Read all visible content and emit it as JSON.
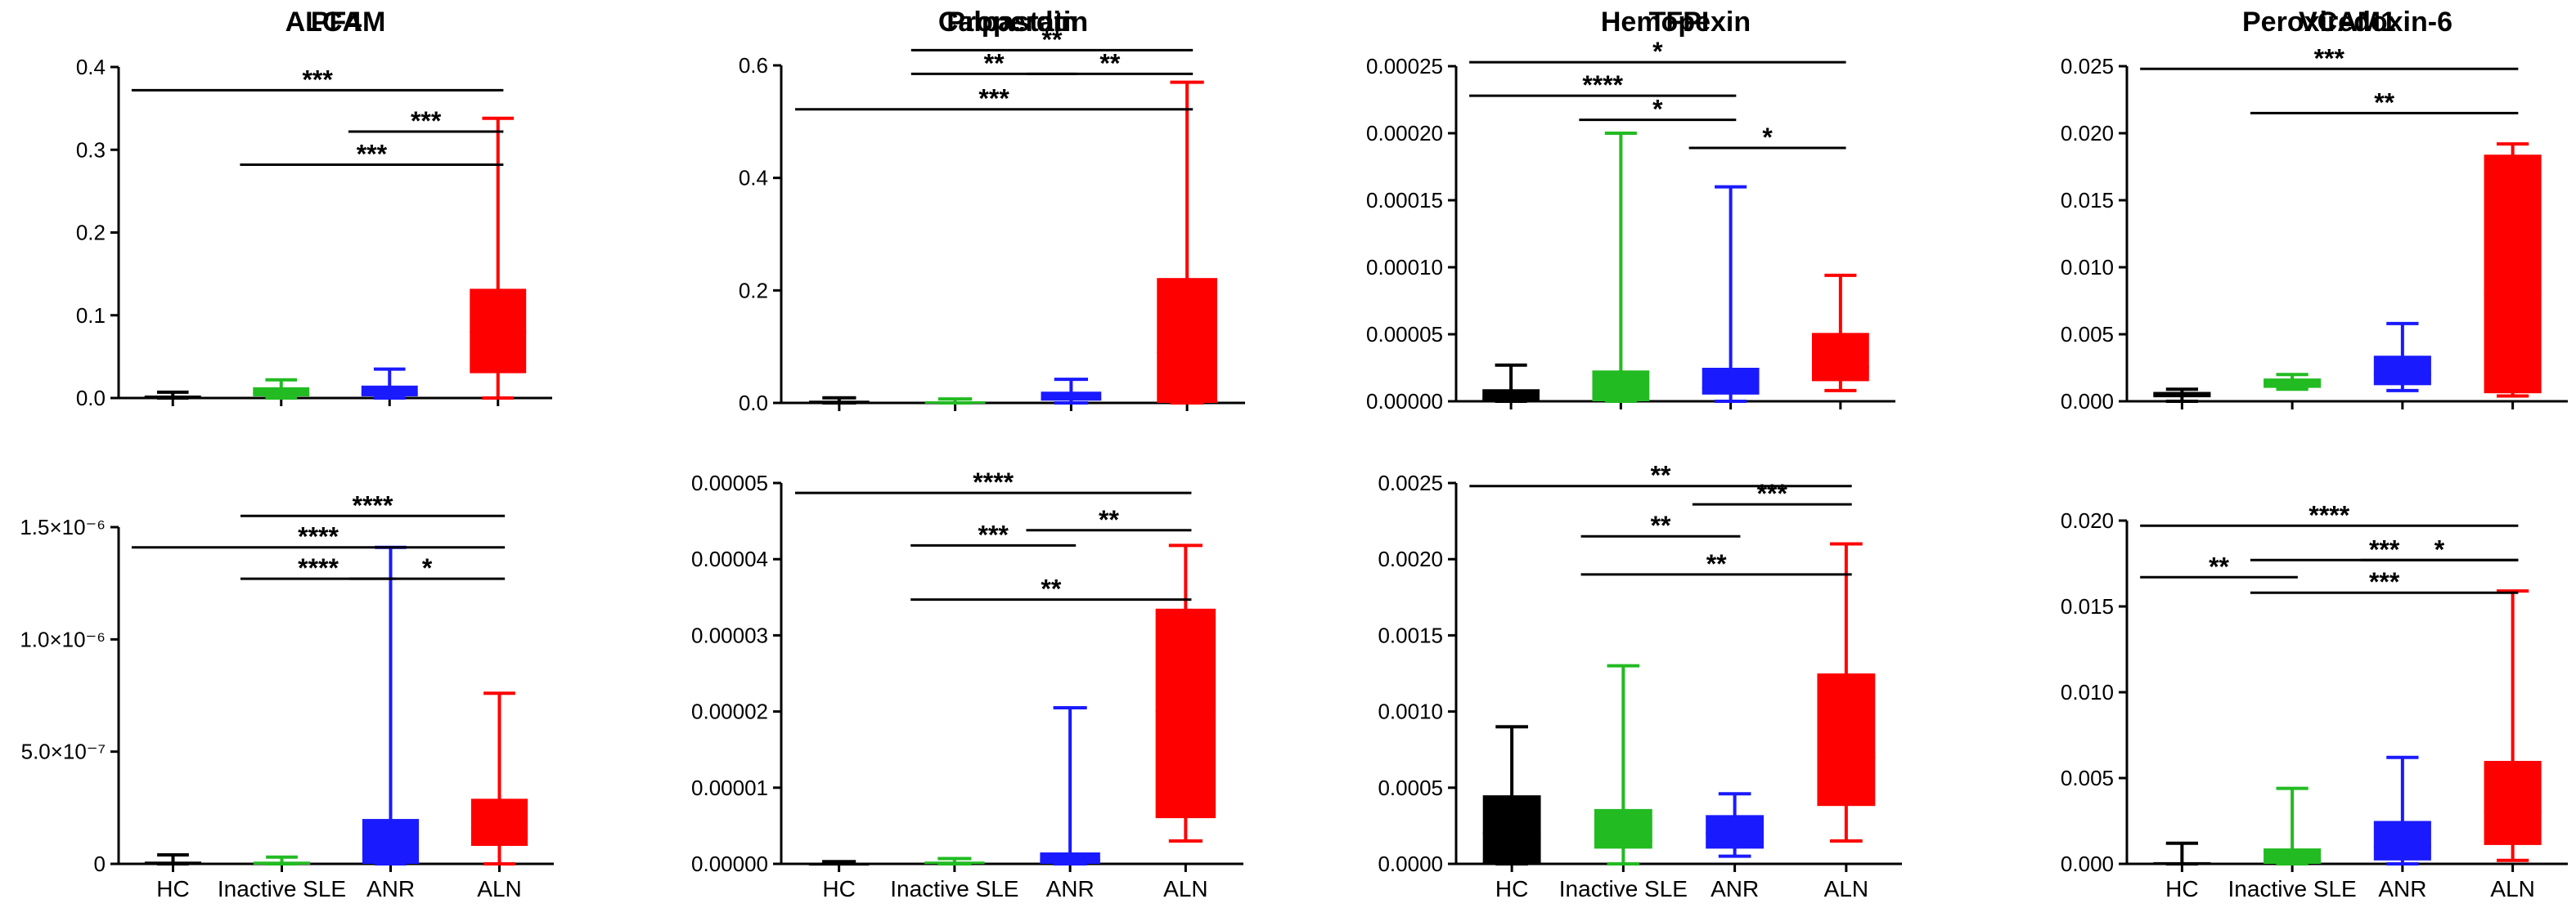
{
  "chart_data": [
    {
      "type": "box",
      "title": "ALCAM",
      "categories": [
        "HC",
        "Inactive SLE",
        "ANR",
        "ALN"
      ],
      "colors": [
        "#000000",
        "#22bb22",
        "#1a1aff",
        "#ff0000"
      ],
      "ylim": [
        0,
        0.4
      ],
      "yticks": [
        0.0,
        0.1,
        0.2,
        0.3,
        0.4
      ],
      "ytick_labels": [
        "0.0",
        "0.1",
        "0.2",
        "0.3",
        "0.4"
      ],
      "show_xlabels": false,
      "boxes": [
        {
          "min": 0,
          "q1": 0,
          "median": 0.001,
          "q3": 0.003,
          "max": 0.007
        },
        {
          "min": 0,
          "q1": 0.002,
          "median": 0.006,
          "q3": 0.013,
          "max": 0.022
        },
        {
          "min": 0,
          "q1": 0.002,
          "median": 0.005,
          "q3": 0.015,
          "max": 0.035
        },
        {
          "min": 0,
          "q1": 0.03,
          "median": 0.08,
          "q3": 0.132,
          "max": 0.338
        }
      ],
      "significance": [
        {
          "from": 0,
          "to": 3,
          "y": 0.372,
          "label": "***"
        },
        {
          "from": 2,
          "to": 3,
          "y": 0.322,
          "label": "***"
        },
        {
          "from": 1,
          "to": 3,
          "y": 0.282,
          "label": "***"
        }
      ]
    },
    {
      "type": "box",
      "title": "Calpastatin",
      "categories": [
        "HC",
        "Inactive SLE",
        "ANR",
        "ALN"
      ],
      "colors": [
        "#000000",
        "#22bb22",
        "#1a1aff",
        "#ff0000"
      ],
      "ylim": [
        0,
        0.6
      ],
      "yticks": [
        0.0,
        0.2,
        0.4,
        0.6
      ],
      "ytick_labels": [
        "0.0",
        "0.2",
        "0.4",
        "0.6"
      ],
      "show_xlabels": false,
      "boxes": [
        {
          "min": 0,
          "q1": 0,
          "median": 0.001,
          "q3": 0.004,
          "max": 0.009
        },
        {
          "min": 0,
          "q1": 0,
          "median": 0.001,
          "q3": 0.003,
          "max": 0.007
        },
        {
          "min": 0,
          "q1": 0.004,
          "median": 0.008,
          "q3": 0.02,
          "max": 0.042
        },
        {
          "min": 0,
          "q1": 0,
          "median": 0.09,
          "q3": 0.222,
          "max": 0.57
        }
      ],
      "significance": [
        {
          "from": 1,
          "to": 3,
          "y": 0.627,
          "label": "**"
        },
        {
          "from": 1,
          "to": 2,
          "y": 0.585,
          "label": "**"
        },
        {
          "from": 2,
          "to": 3,
          "y": 0.585,
          "label": "**"
        },
        {
          "from": 0,
          "to": 3,
          "y": 0.522,
          "label": "***"
        }
      ]
    },
    {
      "type": "box",
      "title": "Hemopexin",
      "categories": [
        "HC",
        "Inactive SLE",
        "ANR",
        "ALN"
      ],
      "colors": [
        "#000000",
        "#22bb22",
        "#1a1aff",
        "#ff0000"
      ],
      "ylim": [
        0,
        0.00025
      ],
      "yticks": [
        0,
        5e-05,
        0.0001,
        0.00015,
        0.0002,
        0.00025
      ],
      "ytick_labels": [
        "0.00000",
        "0.00005",
        "0.00010",
        "0.00015",
        "0.00020",
        "0.00025"
      ],
      "show_xlabels": false,
      "boxes": [
        {
          "min": 0,
          "q1": 0,
          "median": 2e-06,
          "q3": 9e-06,
          "max": 2.7e-05
        },
        {
          "min": 0,
          "q1": 0,
          "median": 5e-06,
          "q3": 2.3e-05,
          "max": 0.0002
        },
        {
          "min": 0,
          "q1": 5e-06,
          "median": 1e-05,
          "q3": 2.5e-05,
          "max": 0.00016
        },
        {
          "min": 8e-06,
          "q1": 1.5e-05,
          "median": 2.5e-05,
          "q3": 5.1e-05,
          "max": 9.4e-05
        }
      ],
      "significance": [
        {
          "from": 0,
          "to": 3,
          "y": 0.000253,
          "label": "*"
        },
        {
          "from": 0,
          "to": 2,
          "y": 0.000228,
          "label": "****"
        },
        {
          "from": 1,
          "to": 2,
          "y": 0.00021,
          "label": "*"
        },
        {
          "from": 2,
          "to": 3,
          "y": 0.000189,
          "label": "*"
        }
      ]
    },
    {
      "type": "box",
      "title": "Peroxiredoxin-6",
      "categories": [
        "HC",
        "Inactive SLE",
        "ANR",
        "ALN"
      ],
      "colors": [
        "#000000",
        "#22bb22",
        "#1a1aff",
        "#ff0000"
      ],
      "ylim": [
        0,
        0.025
      ],
      "yticks": [
        0,
        0.005,
        0.01,
        0.015,
        0.02,
        0.025
      ],
      "ytick_labels": [
        "0.000",
        "0.005",
        "0.010",
        "0.015",
        "0.020",
        "0.025"
      ],
      "show_xlabels": false,
      "boxes": [
        {
          "min": 0,
          "q1": 0.0003,
          "median": 0.0005,
          "q3": 0.0007,
          "max": 0.0009
        },
        {
          "min": 0.0009,
          "q1": 0.001,
          "median": 0.0013,
          "q3": 0.0017,
          "max": 0.002
        },
        {
          "min": 0.0008,
          "q1": 0.0012,
          "median": 0.002,
          "q3": 0.0034,
          "max": 0.0058
        },
        {
          "min": 0.0004,
          "q1": 0.0006,
          "median": 0.008,
          "q3": 0.0184,
          "max": 0.0192
        }
      ],
      "significance": [
        {
          "from": 0,
          "to": 3,
          "y": 0.0248,
          "label": "***"
        },
        {
          "from": 1,
          "to": 3,
          "y": 0.0215,
          "label": "**"
        }
      ]
    },
    {
      "type": "box",
      "title": "PF4",
      "categories": [
        "HC",
        "Inactive SLE",
        "ANR",
        "ALN"
      ],
      "colors": [
        "#000000",
        "#22bb22",
        "#1a1aff",
        "#ff0000"
      ],
      "ylim": [
        0,
        1.5e-06
      ],
      "yticks": [
        0,
        5e-07,
        1e-06,
        1.5e-06
      ],
      "ytick_labels": [
        "0",
        "5.0×10⁻⁷",
        "1.0×10⁻⁶",
        "1.5×10⁻⁶"
      ],
      "show_xlabels": true,
      "boxes": [
        {
          "min": 0,
          "q1": 0,
          "median": 0,
          "q3": 1e-08,
          "max": 4e-08
        },
        {
          "min": 0,
          "q1": 0,
          "median": 0,
          "q3": 1e-08,
          "max": 3e-08
        },
        {
          "min": 0,
          "q1": 0,
          "median": 5e-08,
          "q3": 2e-07,
          "max": 1.41e-06
        },
        {
          "min": 0,
          "q1": 8e-08,
          "median": 1.6e-07,
          "q3": 2.9e-07,
          "max": 7.6e-07
        }
      ],
      "significance": [
        {
          "from": 1,
          "to": 3,
          "y": 1.55e-06,
          "label": "****"
        },
        {
          "from": 0,
          "to": 3,
          "y": 1.41e-06,
          "label": "****"
        },
        {
          "from": 1,
          "to": 2,
          "y": 1.27e-06,
          "label": "****"
        },
        {
          "from": 2,
          "to": 3,
          "y": 1.27e-06,
          "label": "*"
        }
      ]
    },
    {
      "type": "box",
      "title": "Properdin",
      "categories": [
        "HC",
        "Inactive SLE",
        "ANR",
        "ALN"
      ],
      "colors": [
        "#000000",
        "#22bb22",
        "#1a1aff",
        "#ff0000"
      ],
      "ylim": [
        0,
        5e-05
      ],
      "yticks": [
        0,
        1e-05,
        2e-05,
        3e-05,
        4e-05,
        5e-05
      ],
      "ytick_labels": [
        "0.00000",
        "0.00001",
        "0.00002",
        "0.00003",
        "0.00004",
        "0.00005"
      ],
      "show_xlabels": true,
      "boxes": [
        {
          "min": 0,
          "q1": 0,
          "median": 0,
          "q3": 1e-07,
          "max": 3e-07
        },
        {
          "min": 0,
          "q1": 0,
          "median": 1e-07,
          "q3": 3e-07,
          "max": 7e-07
        },
        {
          "min": 0,
          "q1": 0,
          "median": 5e-07,
          "q3": 1.5e-06,
          "max": 2.05e-05
        },
        {
          "min": 3e-06,
          "q1": 6e-06,
          "median": 2e-05,
          "q3": 3.35e-05,
          "max": 4.18e-05
        }
      ],
      "significance": [
        {
          "from": 0,
          "to": 3,
          "y": 4.87e-05,
          "label": "****"
        },
        {
          "from": 2,
          "to": 3,
          "y": 4.38e-05,
          "label": "**"
        },
        {
          "from": 1,
          "to": 2,
          "y": 4.18e-05,
          "label": "***"
        },
        {
          "from": 1,
          "to": 3,
          "y": 3.47e-05,
          "label": "**"
        }
      ]
    },
    {
      "type": "box",
      "title": "TFPI",
      "categories": [
        "HC",
        "Inactive SLE",
        "ANR",
        "ALN"
      ],
      "colors": [
        "#000000",
        "#22bb22",
        "#1a1aff",
        "#ff0000"
      ],
      "ylim": [
        0,
        0.0025
      ],
      "yticks": [
        0,
        0.0005,
        0.001,
        0.0015,
        0.002,
        0.0025
      ],
      "ytick_labels": [
        "0.0000",
        "0.0005",
        "0.0010",
        "0.0015",
        "0.0020",
        "0.0025"
      ],
      "show_xlabels": true,
      "boxes": [
        {
          "min": 0,
          "q1": 0,
          "median": 0.0002,
          "q3": 0.00045,
          "max": 0.0009
        },
        {
          "min": 0,
          "q1": 0.0001,
          "median": 0.00015,
          "q3": 0.00036,
          "max": 0.0013
        },
        {
          "min": 5e-05,
          "q1": 0.0001,
          "median": 0.0002,
          "q3": 0.00032,
          "max": 0.00046
        },
        {
          "min": 0.00015,
          "q1": 0.00038,
          "median": 0.0007,
          "q3": 0.00125,
          "max": 0.0021
        }
      ],
      "significance": [
        {
          "from": 0,
          "to": 3,
          "y": 0.00248,
          "label": "**"
        },
        {
          "from": 2,
          "to": 3,
          "y": 0.00236,
          "label": "***"
        },
        {
          "from": 1,
          "to": 2,
          "y": 0.00215,
          "label": "**"
        },
        {
          "from": 1,
          "to": 3,
          "y": 0.0019,
          "label": "**"
        }
      ]
    },
    {
      "type": "box",
      "title": "VCAM1",
      "categories": [
        "HC",
        "Inactive SLE",
        "ANR",
        "ALN"
      ],
      "colors": [
        "#000000",
        "#22bb22",
        "#1a1aff",
        "#ff0000"
      ],
      "ylim": [
        0,
        0.02
      ],
      "yticks": [
        0,
        0.005,
        0.01,
        0.015,
        0.02
      ],
      "ytick_labels": [
        "0.000",
        "0.005",
        "0.010",
        "0.015",
        "0.020"
      ],
      "show_xlabels": true,
      "boxes": [
        {
          "min": 0,
          "q1": 0,
          "median": 0,
          "q3": 0.0001,
          "max": 0.0012
        },
        {
          "min": 0,
          "q1": 0,
          "median": 0.0002,
          "q3": 0.0009,
          "max": 0.0044
        },
        {
          "min": 0,
          "q1": 0.0002,
          "median": 0.001,
          "q3": 0.0025,
          "max": 0.0062
        },
        {
          "min": 0.0002,
          "q1": 0.0011,
          "median": 0.003,
          "q3": 0.006,
          "max": 0.0159
        }
      ],
      "significance": [
        {
          "from": 0,
          "to": 3,
          "y": 0.0197,
          "label": "****"
        },
        {
          "from": 1,
          "to": 3,
          "y": 0.0177,
          "label": "***"
        },
        {
          "from": 0,
          "to": 1,
          "y": 0.0167,
          "label": "**"
        },
        {
          "from": 2,
          "to": 3,
          "y": 0.0177,
          "label": "*"
        },
        {
          "from": 1,
          "to": 3,
          "y": 0.0158,
          "label": "***"
        }
      ]
    }
  ]
}
